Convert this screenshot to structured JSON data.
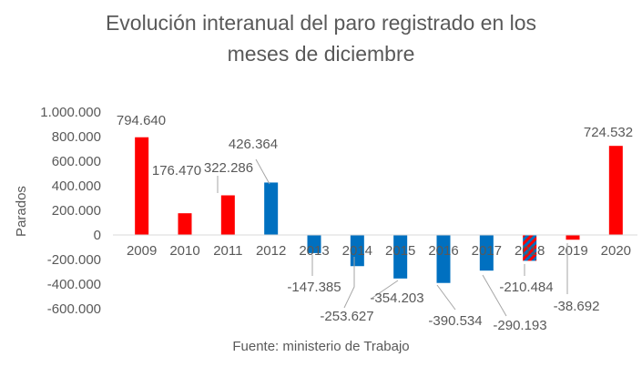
{
  "chart_data": {
    "type": "bar",
    "title_lines": [
      "Evolución interanual del paro registrado en los",
      "meses de diciembre"
    ],
    "ylabel": "Parados",
    "xlabel": "",
    "source": "Fuente: ministerio de Trabajo",
    "categories": [
      "2009",
      "2010",
      "2011",
      "2012",
      "2013",
      "2014",
      "2015",
      "2016",
      "2017",
      "2018",
      "2019",
      "2020"
    ],
    "values": [
      794640,
      176470,
      322286,
      426364,
      -147385,
      -253627,
      -354203,
      -390534,
      -290193,
      -210484,
      -38692,
      724532
    ],
    "value_labels": [
      "794.640",
      "176.470",
      "322.286",
      "426.364",
      "-147.385",
      "-253.627",
      "-354.203",
      "-390.534",
      "-290.193",
      "-210.484",
      "-38.692",
      "724.532"
    ],
    "bar_styles": [
      "red",
      "red",
      "red",
      "blue",
      "blue",
      "blue",
      "blue",
      "blue",
      "blue",
      "hatched",
      "red",
      "red"
    ],
    "ylim": [
      -600000,
      1000000
    ],
    "yticks": [
      1000000,
      800000,
      600000,
      400000,
      200000,
      0,
      -200000,
      -400000,
      -600000
    ],
    "ytick_labels": [
      "1.000.000",
      "800.000",
      "600.000",
      "400.000",
      "200.000",
      "0",
      "-200.000",
      "-400.000",
      "-600.000"
    ],
    "grid": false,
    "legend": "none",
    "colors": {
      "red": "#ff0000",
      "blue": "#0070c0",
      "text": "#595959",
      "axis": "#d9d9d9",
      "leader": "#a6a6a6"
    }
  }
}
